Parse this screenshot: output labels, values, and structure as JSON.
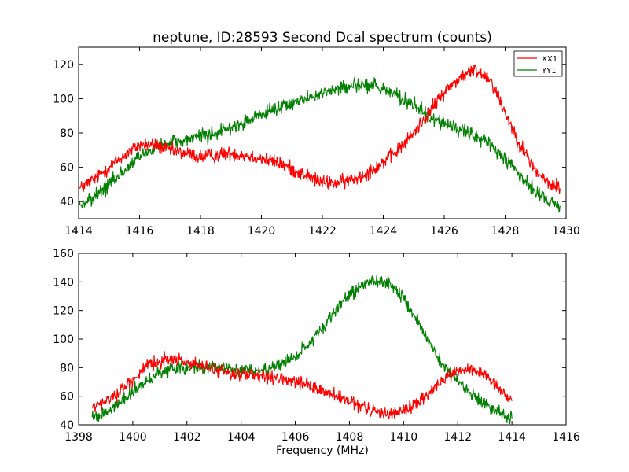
{
  "chart_data": [
    {
      "type": "line",
      "title": "neptune, ID:28593 Second Dcal spectrum (counts)",
      "xlabel": "",
      "ylabel": "",
      "xlim": [
        1414,
        1430
      ],
      "ylim": [
        30,
        130
      ],
      "xticks": [
        1414,
        1416,
        1418,
        1420,
        1422,
        1424,
        1426,
        1428,
        1430
      ],
      "yticks": [
        40,
        60,
        80,
        100,
        120
      ],
      "grid": false,
      "legend": "top-right",
      "noise": 2.6,
      "series": [
        {
          "name": "XX1",
          "color": "#ff0000",
          "x": [
            1414.0,
            1414.5,
            1415.0,
            1415.5,
            1416.0,
            1416.5,
            1417.0,
            1417.5,
            1418.0,
            1418.5,
            1419.0,
            1419.5,
            1420.0,
            1420.5,
            1421.0,
            1421.5,
            1422.0,
            1422.5,
            1423.0,
            1423.5,
            1424.0,
            1424.5,
            1425.0,
            1425.5,
            1426.0,
            1426.5,
            1427.0,
            1427.5,
            1428.0,
            1428.5,
            1429.0,
            1429.5,
            1429.8
          ],
          "y": [
            47,
            53,
            60,
            67,
            73,
            73,
            70,
            68,
            66,
            67,
            68,
            67,
            65,
            63,
            59,
            55,
            51,
            51,
            53,
            57,
            63,
            70,
            80,
            92,
            104,
            112,
            117,
            112,
            92,
            73,
            58,
            49,
            49
          ]
        },
        {
          "name": "YY1",
          "color": "#008000",
          "x": [
            1414.0,
            1414.5,
            1415.0,
            1415.5,
            1416.0,
            1416.5,
            1417.0,
            1417.5,
            1418.0,
            1418.5,
            1419.0,
            1419.5,
            1420.0,
            1420.5,
            1421.0,
            1421.5,
            1422.0,
            1422.5,
            1423.0,
            1423.5,
            1424.0,
            1424.5,
            1425.0,
            1425.5,
            1426.0,
            1426.5,
            1427.0,
            1427.5,
            1428.0,
            1428.5,
            1429.0,
            1429.5,
            1429.8
          ],
          "y": [
            37,
            42,
            50,
            58,
            66,
            71,
            74,
            76,
            78,
            80,
            83,
            87,
            90,
            94,
            97,
            100,
            103,
            106,
            108,
            108,
            106,
            101,
            96,
            90,
            85,
            82,
            78,
            73,
            65,
            55,
            46,
            40,
            38
          ]
        }
      ]
    },
    {
      "type": "line",
      "title": "",
      "xlabel": "Frequency (MHz)",
      "ylabel": "",
      "xlim": [
        1398,
        1416
      ],
      "ylim": [
        40,
        160
      ],
      "xticks": [
        1398,
        1400,
        1402,
        1404,
        1406,
        1408,
        1410,
        1412,
        1414,
        1416
      ],
      "yticks": [
        40,
        60,
        80,
        100,
        120,
        140,
        160
      ],
      "grid": false,
      "noise": 2.8,
      "series": [
        {
          "name": "XX1",
          "color": "#ff0000",
          "x": [
            1398.5,
            1399.0,
            1399.5,
            1400.0,
            1400.5,
            1401.0,
            1401.5,
            1402.0,
            1402.5,
            1403.0,
            1403.5,
            1404.0,
            1404.5,
            1405.0,
            1405.5,
            1406.0,
            1406.5,
            1407.0,
            1407.5,
            1408.0,
            1408.5,
            1409.0,
            1409.5,
            1410.0,
            1410.5,
            1411.0,
            1411.5,
            1412.0,
            1412.5,
            1413.0,
            1413.5,
            1414.0
          ],
          "y": [
            52,
            56,
            63,
            72,
            80,
            85,
            86,
            84,
            81,
            79,
            77,
            75,
            74,
            73,
            72,
            70,
            67,
            64,
            60,
            56,
            52,
            49,
            48,
            50,
            55,
            63,
            72,
            78,
            79,
            74,
            66,
            56
          ]
        },
        {
          "name": "YY1",
          "color": "#008000",
          "x": [
            1398.5,
            1399.0,
            1399.5,
            1400.0,
            1400.5,
            1401.0,
            1401.5,
            1402.0,
            1402.5,
            1403.0,
            1403.5,
            1404.0,
            1404.5,
            1405.0,
            1405.5,
            1406.0,
            1406.5,
            1407.0,
            1407.5,
            1408.0,
            1408.5,
            1409.0,
            1409.5,
            1410.0,
            1410.5,
            1411.0,
            1411.5,
            1412.0,
            1412.5,
            1413.0,
            1413.5,
            1414.0
          ],
          "y": [
            45,
            48,
            55,
            63,
            70,
            76,
            79,
            80,
            80,
            80,
            79,
            78,
            78,
            79,
            82,
            88,
            97,
            108,
            120,
            131,
            138,
            141,
            138,
            128,
            113,
            96,
            80,
            70,
            62,
            55,
            49,
            45
          ]
        }
      ]
    }
  ]
}
